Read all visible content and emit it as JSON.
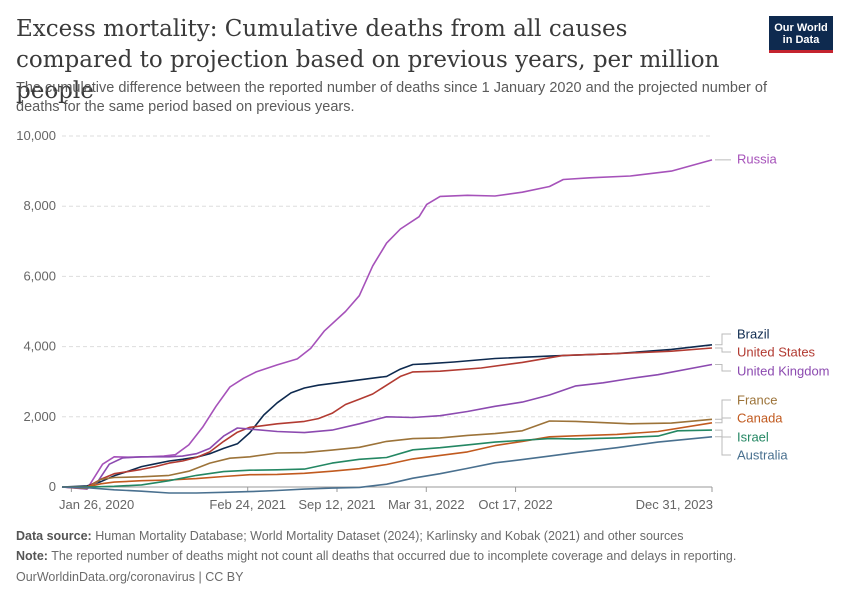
{
  "header": {
    "title": "Excess mortality: Cumulative deaths from all causes compared to projection based on previous years, per million people",
    "subtitle": "The cumulative difference between the reported number of deaths since 1 January 2020 and the projected number of deaths for the same period based on previous years."
  },
  "logo": {
    "line1": "Our World",
    "line2": "in Data",
    "bg_color": "#0e2a4f",
    "accent_color": "#c4232f"
  },
  "footer": {
    "source_label": "Data source:",
    "source_text": "Human Mortality Database; World Mortality Dataset (2024); Karlinsky and Kobak (2021) and other sources",
    "note_label": "Note:",
    "note_text": "The reported number of deaths might not count all deaths that occurred due to incomplete coverage and delays in reporting.",
    "credit": "OurWorldinData.org/coronavirus | CC BY"
  },
  "chart_data": {
    "type": "line",
    "x_type": "date",
    "xlim": [
      "2020-01-05",
      "2023-12-31"
    ],
    "ylim": [
      0,
      10000
    ],
    "yticks": [
      0,
      2000,
      4000,
      6000,
      8000,
      10000
    ],
    "ytick_labels": [
      "0",
      "2,000",
      "4,000",
      "6,000",
      "8,000",
      "10,000"
    ],
    "xticks": [
      "2020-01-26",
      "2021-02-24",
      "2021-09-12",
      "2022-03-31",
      "2022-10-17",
      "2023-12-31"
    ],
    "xtick_labels": [
      "Jan 26, 2020",
      "Feb 24, 2021",
      "Sep 12, 2021",
      "Mar 31, 2022",
      "Oct 17, 2022",
      "Dec 31, 2023"
    ],
    "grid": "horizontal dashed",
    "legend": "right, labels at line ends",
    "series": [
      {
        "name": "Russia",
        "color": "#a652ba",
        "points": [
          [
            "2020-01-05",
            0
          ],
          [
            "2020-03-01",
            -60
          ],
          [
            "2020-04-05",
            650
          ],
          [
            "2020-05-01",
            860
          ],
          [
            "2020-06-01",
            850
          ],
          [
            "2020-07-15",
            860
          ],
          [
            "2020-08-20",
            880
          ],
          [
            "2020-09-15",
            920
          ],
          [
            "2020-10-15",
            1200
          ],
          [
            "2020-11-15",
            1700
          ],
          [
            "2020-12-15",
            2300
          ],
          [
            "2021-01-15",
            2850
          ],
          [
            "2021-02-15",
            3100
          ],
          [
            "2021-03-15",
            3280
          ],
          [
            "2021-05-01",
            3480
          ],
          [
            "2021-06-15",
            3650
          ],
          [
            "2021-07-15",
            3950
          ],
          [
            "2021-08-15",
            4450
          ],
          [
            "2021-10-01",
            5000
          ],
          [
            "2021-11-01",
            5450
          ],
          [
            "2021-12-01",
            6300
          ],
          [
            "2022-01-01",
            6950
          ],
          [
            "2022-02-01",
            7350
          ],
          [
            "2022-03-15",
            7700
          ],
          [
            "2022-04-01",
            8050
          ],
          [
            "2022-05-01",
            8280
          ],
          [
            "2022-07-01",
            8310
          ],
          [
            "2022-09-01",
            8290
          ],
          [
            "2022-11-01",
            8400
          ],
          [
            "2023-01-01",
            8560
          ],
          [
            "2023-02-01",
            8760
          ],
          [
            "2023-04-01",
            8810
          ],
          [
            "2023-07-01",
            8860
          ],
          [
            "2023-10-01",
            9000
          ],
          [
            "2023-12-31",
            9320
          ]
        ]
      },
      {
        "name": "Brazil",
        "color": "#0e2a4f",
        "points": [
          [
            "2020-01-05",
            0
          ],
          [
            "2020-03-01",
            30
          ],
          [
            "2020-04-01",
            150
          ],
          [
            "2020-05-01",
            320
          ],
          [
            "2020-06-01",
            450
          ],
          [
            "2020-07-01",
            580
          ],
          [
            "2020-08-01",
            660
          ],
          [
            "2020-09-01",
            740
          ],
          [
            "2020-10-01",
            790
          ],
          [
            "2020-11-01",
            850
          ],
          [
            "2020-12-01",
            950
          ],
          [
            "2021-01-01",
            1100
          ],
          [
            "2021-02-01",
            1230
          ],
          [
            "2021-03-01",
            1550
          ],
          [
            "2021-04-01",
            2050
          ],
          [
            "2021-05-01",
            2400
          ],
          [
            "2021-06-01",
            2680
          ],
          [
            "2021-07-01",
            2820
          ],
          [
            "2021-08-01",
            2900
          ],
          [
            "2021-10-01",
            3000
          ],
          [
            "2022-01-01",
            3150
          ],
          [
            "2022-02-01",
            3360
          ],
          [
            "2022-03-01",
            3490
          ],
          [
            "2022-04-01",
            3510
          ],
          [
            "2022-06-01",
            3560
          ],
          [
            "2022-09-01",
            3660
          ],
          [
            "2023-01-01",
            3730
          ],
          [
            "2023-06-01",
            3800
          ],
          [
            "2023-10-01",
            3920
          ],
          [
            "2023-12-31",
            4050
          ]
        ]
      },
      {
        "name": "United States",
        "color": "#b23b32",
        "points": [
          [
            "2020-01-05",
            0
          ],
          [
            "2020-03-01",
            0
          ],
          [
            "2020-04-01",
            220
          ],
          [
            "2020-05-01",
            380
          ],
          [
            "2020-06-01",
            440
          ],
          [
            "2020-07-01",
            500
          ],
          [
            "2020-08-01",
            580
          ],
          [
            "2020-09-01",
            680
          ],
          [
            "2020-10-01",
            740
          ],
          [
            "2020-11-01",
            840
          ],
          [
            "2020-12-01",
            1000
          ],
          [
            "2021-01-01",
            1300
          ],
          [
            "2021-02-01",
            1560
          ],
          [
            "2021-03-01",
            1700
          ],
          [
            "2021-05-01",
            1800
          ],
          [
            "2021-07-01",
            1870
          ],
          [
            "2021-08-01",
            1950
          ],
          [
            "2021-09-01",
            2100
          ],
          [
            "2021-10-01",
            2350
          ],
          [
            "2021-11-01",
            2500
          ],
          [
            "2021-12-01",
            2650
          ],
          [
            "2022-01-01",
            2900
          ],
          [
            "2022-02-01",
            3150
          ],
          [
            "2022-03-01",
            3280
          ],
          [
            "2022-05-01",
            3300
          ],
          [
            "2022-08-01",
            3390
          ],
          [
            "2022-11-01",
            3550
          ],
          [
            "2023-02-01",
            3750
          ],
          [
            "2023-06-01",
            3800
          ],
          [
            "2023-10-01",
            3870
          ],
          [
            "2023-12-31",
            3960
          ]
        ]
      },
      {
        "name": "United Kingdom",
        "color": "#8c4ab0",
        "points": [
          [
            "2020-01-05",
            0
          ],
          [
            "2020-03-01",
            -50
          ],
          [
            "2020-03-25",
            150
          ],
          [
            "2020-04-20",
            650
          ],
          [
            "2020-05-20",
            830
          ],
          [
            "2020-07-01",
            860
          ],
          [
            "2020-09-01",
            860
          ],
          [
            "2020-10-01",
            880
          ],
          [
            "2020-11-01",
            950
          ],
          [
            "2020-12-01",
            1100
          ],
          [
            "2021-01-01",
            1450
          ],
          [
            "2021-02-01",
            1680
          ],
          [
            "2021-03-01",
            1650
          ],
          [
            "2021-05-01",
            1580
          ],
          [
            "2021-07-01",
            1550
          ],
          [
            "2021-09-01",
            1620
          ],
          [
            "2021-11-01",
            1800
          ],
          [
            "2022-01-01",
            2000
          ],
          [
            "2022-03-01",
            1980
          ],
          [
            "2022-05-01",
            2030
          ],
          [
            "2022-07-01",
            2150
          ],
          [
            "2022-09-01",
            2300
          ],
          [
            "2022-11-01",
            2420
          ],
          [
            "2023-01-01",
            2620
          ],
          [
            "2023-03-01",
            2880
          ],
          [
            "2023-05-01",
            2970
          ],
          [
            "2023-07-01",
            3090
          ],
          [
            "2023-09-01",
            3200
          ],
          [
            "2023-12-31",
            3490
          ]
        ]
      },
      {
        "name": "France",
        "color": "#9c7339",
        "points": [
          [
            "2020-01-05",
            0
          ],
          [
            "2020-03-01",
            -40
          ],
          [
            "2020-04-01",
            220
          ],
          [
            "2020-05-01",
            270
          ],
          [
            "2020-07-01",
            290
          ],
          [
            "2020-09-01",
            330
          ],
          [
            "2020-10-15",
            450
          ],
          [
            "2020-12-01",
            680
          ],
          [
            "2021-01-15",
            820
          ],
          [
            "2021-03-01",
            860
          ],
          [
            "2021-05-01",
            970
          ],
          [
            "2021-07-01",
            980
          ],
          [
            "2021-09-01",
            1050
          ],
          [
            "2021-11-01",
            1130
          ],
          [
            "2022-01-01",
            1300
          ],
          [
            "2022-03-01",
            1380
          ],
          [
            "2022-05-01",
            1400
          ],
          [
            "2022-07-01",
            1470
          ],
          [
            "2022-09-01",
            1520
          ],
          [
            "2022-11-01",
            1600
          ],
          [
            "2023-01-01",
            1880
          ],
          [
            "2023-03-01",
            1870
          ],
          [
            "2023-07-01",
            1800
          ],
          [
            "2023-10-01",
            1820
          ],
          [
            "2023-12-31",
            1930
          ]
        ]
      },
      {
        "name": "Canada",
        "color": "#c15a1f",
        "points": [
          [
            "2020-01-05",
            0
          ],
          [
            "2020-03-01",
            0
          ],
          [
            "2020-04-01",
            90
          ],
          [
            "2020-05-01",
            140
          ],
          [
            "2020-07-01",
            180
          ],
          [
            "2020-09-01",
            200
          ],
          [
            "2020-11-01",
            240
          ],
          [
            "2021-01-01",
            300
          ],
          [
            "2021-03-01",
            350
          ],
          [
            "2021-05-01",
            360
          ],
          [
            "2021-07-01",
            390
          ],
          [
            "2021-09-01",
            450
          ],
          [
            "2021-11-01",
            520
          ],
          [
            "2022-01-01",
            640
          ],
          [
            "2022-03-01",
            800
          ],
          [
            "2022-05-01",
            900
          ],
          [
            "2022-07-01",
            1000
          ],
          [
            "2022-09-01",
            1180
          ],
          [
            "2022-11-01",
            1300
          ],
          [
            "2023-01-01",
            1430
          ],
          [
            "2023-03-01",
            1460
          ],
          [
            "2023-06-01",
            1500
          ],
          [
            "2023-09-01",
            1580
          ],
          [
            "2023-12-31",
            1830
          ]
        ]
      },
      {
        "name": "Israel",
        "color": "#248763",
        "points": [
          [
            "2020-01-05",
            0
          ],
          [
            "2020-03-01",
            0
          ],
          [
            "2020-05-01",
            20
          ],
          [
            "2020-07-01",
            60
          ],
          [
            "2020-09-01",
            180
          ],
          [
            "2020-11-01",
            330
          ],
          [
            "2021-01-01",
            440
          ],
          [
            "2021-03-01",
            480
          ],
          [
            "2021-05-01",
            490
          ],
          [
            "2021-07-01",
            510
          ],
          [
            "2021-09-01",
            680
          ],
          [
            "2021-11-01",
            790
          ],
          [
            "2022-01-01",
            840
          ],
          [
            "2022-03-01",
            1060
          ],
          [
            "2022-05-01",
            1120
          ],
          [
            "2022-07-01",
            1200
          ],
          [
            "2022-09-01",
            1280
          ],
          [
            "2022-11-01",
            1330
          ],
          [
            "2023-01-01",
            1380
          ],
          [
            "2023-03-01",
            1370
          ],
          [
            "2023-06-01",
            1400
          ],
          [
            "2023-09-01",
            1450
          ],
          [
            "2023-10-15",
            1600
          ],
          [
            "2023-12-31",
            1620
          ]
        ]
      },
      {
        "name": "Australia",
        "color": "#49708f",
        "points": [
          [
            "2020-01-05",
            0
          ],
          [
            "2020-03-01",
            -20
          ],
          [
            "2020-05-01",
            -80
          ],
          [
            "2020-07-01",
            -120
          ],
          [
            "2020-09-01",
            -170
          ],
          [
            "2020-11-01",
            -170
          ],
          [
            "2021-01-01",
            -150
          ],
          [
            "2021-03-01",
            -130
          ],
          [
            "2021-05-01",
            -100
          ],
          [
            "2021-07-01",
            -60
          ],
          [
            "2021-09-01",
            -30
          ],
          [
            "2021-11-01",
            -10
          ],
          [
            "2022-01-01",
            80
          ],
          [
            "2022-03-01",
            250
          ],
          [
            "2022-05-01",
            380
          ],
          [
            "2022-07-01",
            530
          ],
          [
            "2022-09-01",
            690
          ],
          [
            "2022-11-01",
            780
          ],
          [
            "2023-01-01",
            880
          ],
          [
            "2023-03-01",
            980
          ],
          [
            "2023-06-01",
            1120
          ],
          [
            "2023-09-01",
            1280
          ],
          [
            "2023-12-31",
            1430
          ]
        ]
      }
    ]
  }
}
